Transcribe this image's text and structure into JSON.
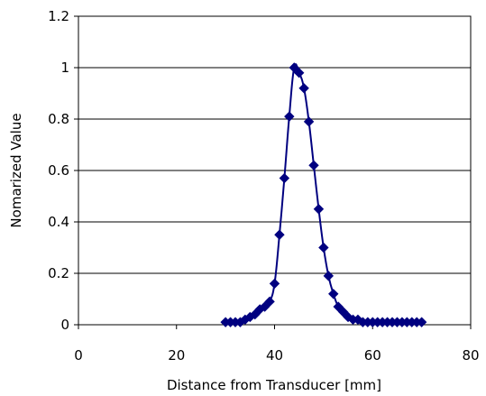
{
  "chart_data": {
    "type": "scatter",
    "xlabel": "Distance from Transducer [mm]",
    "ylabel": "Nomarized Value",
    "xlim": [
      0,
      80
    ],
    "ylim": [
      0,
      1.2
    ],
    "xticks": [
      0,
      20,
      40,
      60,
      80
    ],
    "xtick_labels": [
      "0",
      "20",
      "40",
      "60",
      "80"
    ],
    "yticks": [
      0,
      0.2,
      0.4,
      0.6,
      0.8,
      1,
      1.2
    ],
    "ytick_labels": [
      "0",
      "0.2",
      "0.4",
      "0.6",
      "0.8",
      "1",
      "1.2"
    ],
    "grid": "horizontal",
    "legend": "none",
    "series_color": "#000080",
    "marker": "diamond",
    "smooth_line": true,
    "series": [
      {
        "x": [
          30,
          31,
          32,
          33,
          34,
          35,
          36,
          37,
          38,
          39,
          40,
          41,
          42,
          43,
          44,
          45,
          46,
          47,
          48,
          49,
          50,
          51,
          52,
          53,
          54,
          55,
          56,
          57,
          58,
          59,
          60,
          61,
          62,
          63,
          64,
          65,
          66,
          67,
          68,
          69,
          70
        ],
        "y": [
          0.01,
          0.01,
          0.01,
          0.01,
          0.02,
          0.03,
          0.04,
          0.06,
          0.07,
          0.09,
          0.16,
          0.35,
          0.57,
          0.81,
          1.0,
          0.98,
          0.92,
          0.79,
          0.62,
          0.45,
          0.3,
          0.19,
          0.12,
          0.07,
          0.05,
          0.03,
          0.02,
          0.02,
          0.01,
          0.01,
          0.01,
          0.01,
          0.01,
          0.01,
          0.01,
          0.01,
          0.01,
          0.01,
          0.01,
          0.01,
          0.01
        ]
      }
    ]
  }
}
